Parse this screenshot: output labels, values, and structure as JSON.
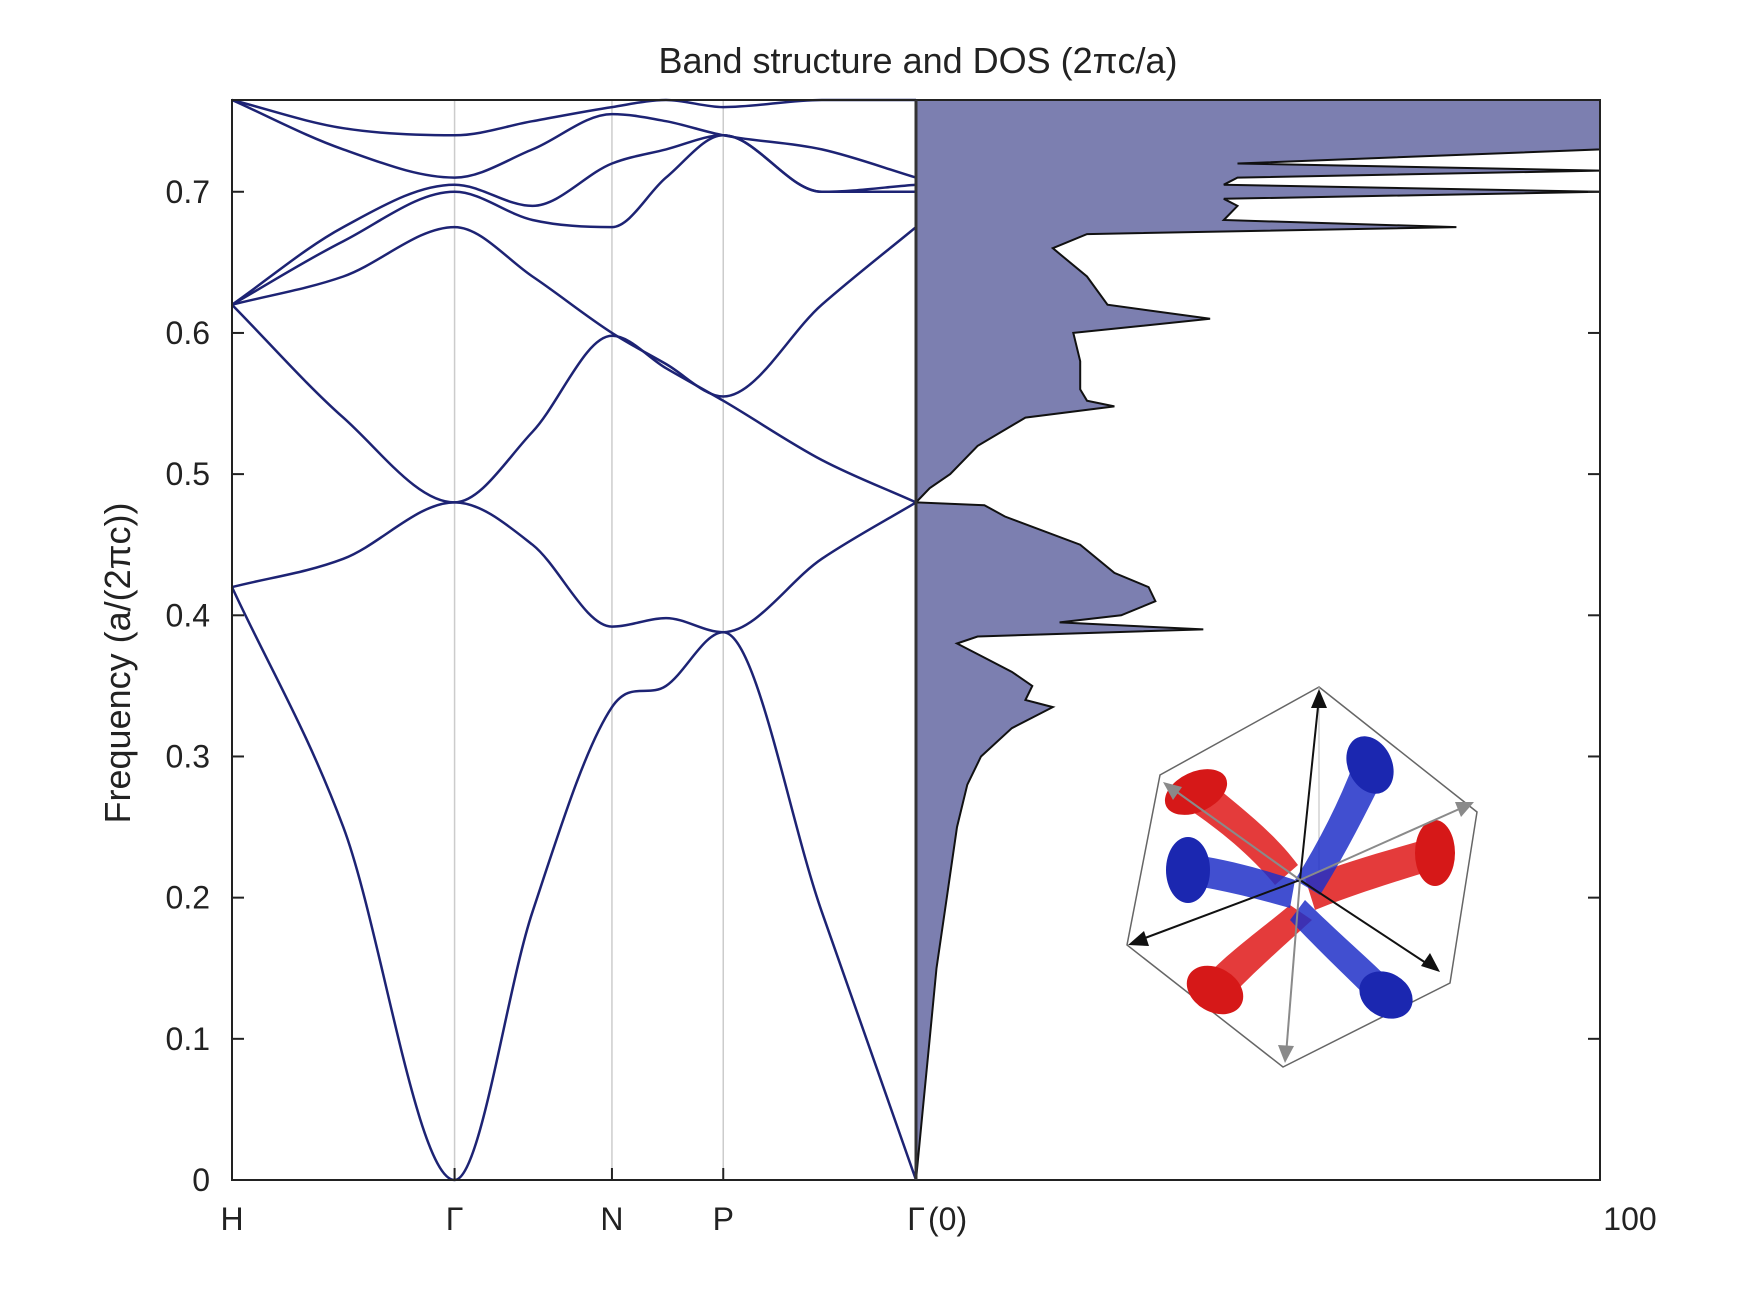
{
  "chart_data": {
    "type": "line",
    "title": "Band structure and DOS (2πc/a)",
    "ylabel": "Frequency (a/(2πc))",
    "ylim": [
      0,
      0.765
    ],
    "y_ticks": [
      0,
      0.1,
      0.2,
      0.3,
      0.4,
      0.5,
      0.6,
      0.7
    ],
    "y_tick_labels": [
      "0",
      "0.1",
      "0.2",
      "0.3",
      "0.4",
      "0.5",
      "0.6",
      "0.7"
    ],
    "grid": false,
    "panels": [
      {
        "name": "band structure",
        "x_ticks": [
          0,
          1,
          1.707,
          2.207,
          3.073
        ],
        "x_tick_labels": [
          "H",
          "Γ",
          "N",
          "P",
          "Γ"
        ],
        "series": [
          {
            "x": [
              0,
              0.5,
              1,
              1.35,
              1.707,
              1.95,
              2.207,
              2.65,
              3.073
            ],
            "y": [
              0.42,
              0.25,
              0.0,
              0.19,
              0.335,
              0.35,
              0.388,
              0.19,
              0.0
            ]
          },
          {
            "x": [
              0,
              0.5,
              1,
              1.35,
              1.707,
              1.95,
              2.207,
              2.65,
              3.073
            ],
            "y": [
              0.42,
              0.44,
              0.48,
              0.45,
              0.392,
              0.398,
              0.388,
              0.44,
              0.48
            ]
          },
          {
            "x": [
              0,
              0.5,
              1,
              1.35,
              1.707,
              1.95,
              2.207,
              2.65,
              3.073
            ],
            "y": [
              0.62,
              0.54,
              0.48,
              0.53,
              0.598,
              0.575,
              0.552,
              0.51,
              0.48
            ]
          },
          {
            "x": [
              0,
              0.5,
              1,
              1.35,
              1.707,
              1.95,
              2.207,
              2.65,
              3.073
            ],
            "y": [
              0.62,
              0.64,
              0.675,
              0.64,
              0.6,
              0.578,
              0.555,
              0.62,
              0.675
            ]
          },
          {
            "x": [
              0,
              0.5,
              1,
              1.35,
              1.707,
              1.95,
              2.207,
              2.65,
              3.073
            ],
            "y": [
              0.62,
              0.665,
              0.7,
              0.68,
              0.675,
              0.71,
              0.74,
              0.7,
              0.7
            ]
          },
          {
            "x": [
              0,
              0.5,
              1,
              1.35,
              1.707,
              1.95,
              2.207,
              2.65,
              3.073
            ],
            "y": [
              0.62,
              0.675,
              0.705,
              0.69,
              0.72,
              0.73,
              0.74,
              0.7,
              0.705
            ]
          },
          {
            "x": [
              0,
              0.5,
              1,
              1.35,
              1.707,
              1.95,
              2.207,
              2.65,
              3.073
            ],
            "y": [
              0.765,
              0.73,
              0.71,
              0.73,
              0.755,
              0.75,
              0.74,
              0.73,
              0.71
            ]
          },
          {
            "x": [
              0,
              0.5,
              1,
              1.35,
              1.707,
              1.95,
              2.207,
              2.65,
              3.073
            ],
            "y": [
              0.765,
              0.745,
              0.74,
              0.75,
              0.76,
              0.765,
              0.76,
              0.765,
              0.765
            ]
          }
        ]
      },
      {
        "name": "DOS",
        "type": "area",
        "xlim": [
          0,
          100
        ],
        "x_tick_labels": [
          "(0)",
          "100"
        ],
        "y": [
          0.0,
          0.05,
          0.1,
          0.15,
          0.2,
          0.25,
          0.28,
          0.3,
          0.32,
          0.335,
          0.34,
          0.35,
          0.36,
          0.37,
          0.38,
          0.385,
          0.39,
          0.395,
          0.4,
          0.41,
          0.42,
          0.43,
          0.45,
          0.47,
          0.478,
          0.48,
          0.49,
          0.5,
          0.52,
          0.54,
          0.548,
          0.552,
          0.56,
          0.58,
          0.6,
          0.61,
          0.62,
          0.64,
          0.66,
          0.67,
          0.675,
          0.68,
          0.69,
          0.695,
          0.7,
          0.705,
          0.71,
          0.715,
          0.72,
          0.73,
          0.74,
          0.75,
          0.765
        ],
        "values": [
          0,
          1,
          2,
          3,
          4.5,
          6,
          7.5,
          9.5,
          14,
          20,
          16,
          17,
          14,
          10,
          6,
          9,
          42,
          21,
          30,
          35,
          34,
          29,
          24,
          13,
          10,
          0,
          2,
          5,
          9,
          16,
          29,
          25,
          24,
          24,
          23,
          43,
          28,
          25,
          20,
          25,
          79,
          45,
          47,
          45,
          100,
          45,
          47,
          100,
          47,
          100,
          100,
          100,
          100
        ]
      }
    ]
  },
  "inset": {
    "type": "3d-unit-cell-illustration",
    "colors": {
      "tube_a": "#e02020",
      "tube_b": "#2030c8",
      "arrow_primary": "#111111",
      "arrow_secondary": "#8a8a8a"
    }
  },
  "colors": {
    "band_line": "#1d2374",
    "dos_fill": "#7c7fb0",
    "dos_outline": "#111111",
    "vline": "#cccccc",
    "axis": "#222222"
  }
}
